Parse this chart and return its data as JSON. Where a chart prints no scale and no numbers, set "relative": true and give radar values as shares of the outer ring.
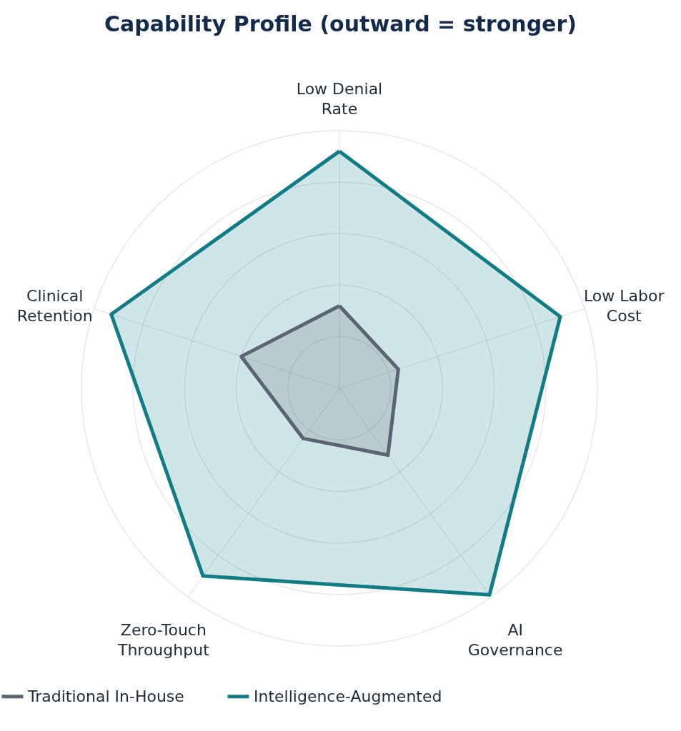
{
  "chart_data": {
    "type": "radar",
    "title": "Capability Profile  (outward = stronger)",
    "relative": true,
    "grid": true,
    "legend": "bottom",
    "categories": [
      "Low Denial Rate",
      "Low Labor Cost",
      "AI Governance",
      "Zero-Touch Throughput",
      "Clinical Retention"
    ],
    "series": [
      {
        "name": "Traditional In-House",
        "color": "#5a6473",
        "values": [
          0.32,
          0.24,
          0.32,
          0.24,
          0.4
        ]
      },
      {
        "name": "Intelligence-Augmented",
        "color": "#127c86",
        "values": [
          0.92,
          0.9,
          0.99,
          0.9,
          0.93
        ]
      }
    ]
  }
}
